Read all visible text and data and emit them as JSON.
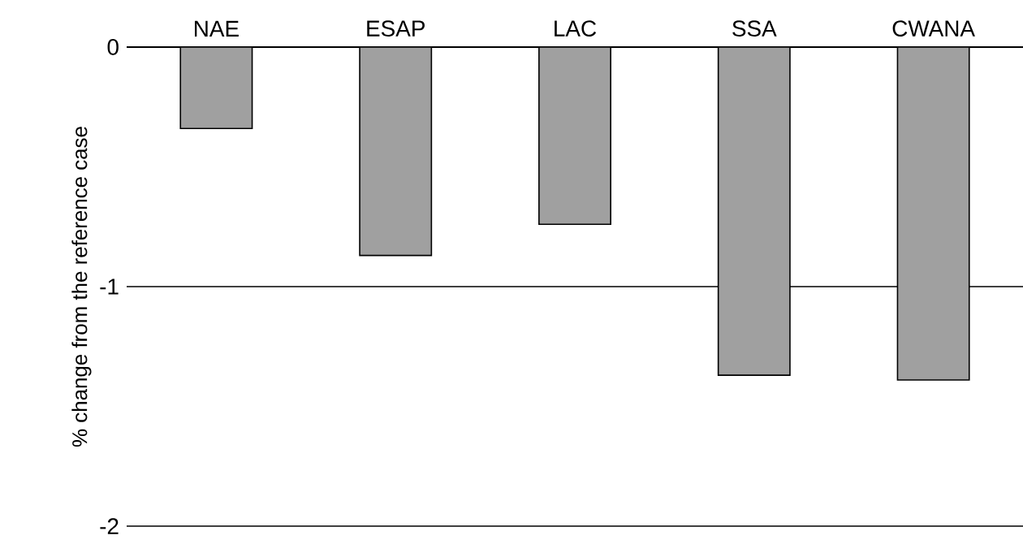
{
  "chart_data": {
    "type": "bar",
    "ylabel": "% change from the reference case",
    "categories": [
      "NAE",
      "ESAP",
      "LAC",
      "SSA",
      "CWANA"
    ],
    "values": [
      -0.34,
      -0.87,
      -0.74,
      -1.37,
      -1.39
    ],
    "color": "#a0a0a0",
    "ylim": [
      -2,
      0
    ],
    "yticks": [
      -2,
      -1,
      0
    ],
    "grid": "y"
  }
}
